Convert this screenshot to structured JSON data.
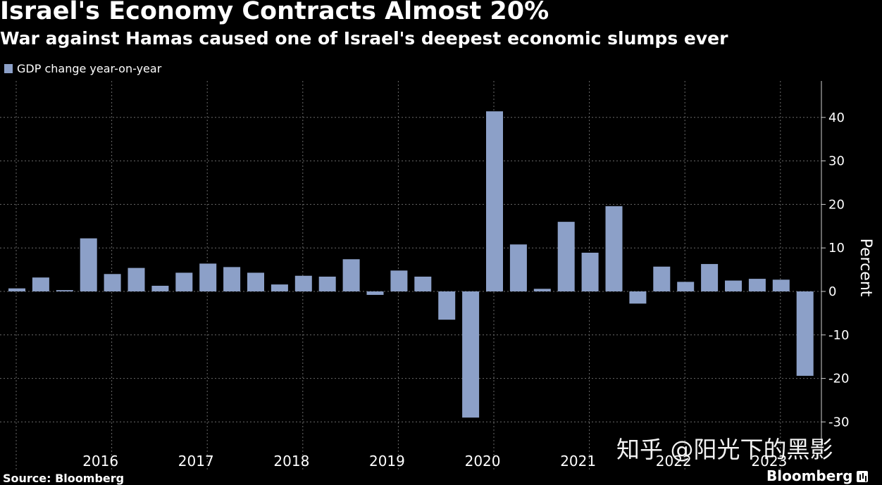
{
  "header": {
    "title": "Israel's Economy Contracts Almost 20%",
    "subtitle": "War against Hamas caused one of Israel's deepest economic slumps ever"
  },
  "footer": {
    "source": "Source: Bloomberg",
    "brand": "Bloomberg",
    "watermark": "知乎 @阳光下的黑影"
  },
  "colors": {
    "bar": "#8ca0c8",
    "background": "#000000",
    "grid": "#6a6a6a"
  },
  "chart_data": {
    "type": "bar",
    "title": "Israel's Economy Contracts Almost 20%",
    "subtitle": "War against Hamas caused one of Israel's deepest economic slumps ever",
    "ylabel": "Percent",
    "ylim": [
      -32,
      48
    ],
    "yticks": [
      -30,
      -20,
      -10,
      0,
      10,
      20,
      30,
      40
    ],
    "grid": true,
    "legend_position": "top-left",
    "series": [
      {
        "name": "GDP change year-on-year",
        "values": [
          0.7,
          3.2,
          0.3,
          12.2,
          4.0,
          5.4,
          1.3,
          4.3,
          6.4,
          5.6,
          4.3,
          1.6,
          3.6,
          3.4,
          7.4,
          -0.8,
          4.8,
          3.4,
          -6.5,
          -29.0,
          41.4,
          10.8,
          0.6,
          16.0,
          8.9,
          19.6,
          -2.8,
          5.7,
          2.2,
          6.3,
          2.5,
          2.9,
          2.7,
          -19.4
        ]
      }
    ],
    "year_labels": [
      "2016",
      "2017",
      "2018",
      "2019",
      "2020",
      "2021",
      "2022",
      "2023"
    ]
  }
}
